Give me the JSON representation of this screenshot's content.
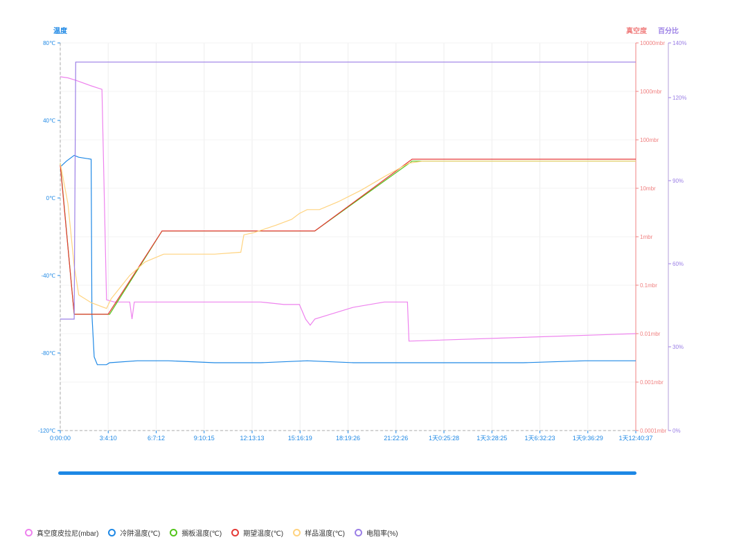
{
  "chart_data": {
    "type": "line",
    "axis_titles": {
      "left": "温度",
      "right_vacuum": "真空度",
      "right_percent": "百分比"
    },
    "x_ticks": [
      "0:00:00",
      "3:4:10",
      "6:7:12",
      "9:10:15",
      "12:13:13",
      "15:16:19",
      "18:19:26",
      "21:22:26",
      "1天0:25:28",
      "1天3:28:25",
      "1天6:32:23",
      "1天9:36:29",
      "1天12:40:37"
    ],
    "x_range_hours": [
      0,
      37.3
    ],
    "y_left": {
      "ticks": [
        "80℃",
        "40℃",
        "0℃",
        "-40℃",
        "-80℃",
        "-120℃"
      ],
      "range": [
        -120,
        80
      ]
    },
    "y_vacuum": {
      "ticks": [
        "10000mbr",
        "1000mbr",
        "100mbr",
        "10mbr",
        "1mbr",
        "0.1mbr",
        "0.01mbr",
        "0.001mbr",
        "0.0001mbr"
      ],
      "log_range": [
        -4,
        4
      ]
    },
    "y_percent": {
      "ticks": [
        "140%",
        "120%",
        "90%",
        "60%",
        "30%",
        "0%"
      ]
    },
    "grid": true,
    "legend_position": "bottom-left",
    "series": [
      {
        "name": "真空度皮拉尼(mbar)",
        "color": "#ee82ee",
        "axis": "vacuum",
        "points": [
          [
            0,
            2000
          ],
          [
            0.5,
            1900
          ],
          [
            1,
            1700
          ],
          [
            2,
            1300
          ],
          [
            2.7,
            1100
          ],
          [
            3.0,
            0.05
          ],
          [
            3.5,
            0.045
          ],
          [
            4.5,
            0.045
          ],
          [
            4.65,
            0.02
          ],
          [
            4.8,
            0.045
          ],
          [
            7,
            0.045
          ],
          [
            10,
            0.045
          ],
          [
            13,
            0.045
          ],
          [
            14.5,
            0.04
          ],
          [
            15.5,
            0.04
          ],
          [
            15.9,
            0.02
          ],
          [
            16.2,
            0.015
          ],
          [
            16.5,
            0.02
          ],
          [
            17.5,
            0.025
          ],
          [
            19,
            0.035
          ],
          [
            21,
            0.045
          ],
          [
            22.5,
            0.045
          ],
          [
            22.6,
            0.007
          ],
          [
            37.3,
            0.01
          ]
        ]
      },
      {
        "name": "冷阱温度(℃)",
        "color": "#1e88e5",
        "axis": "left",
        "points": [
          [
            0,
            16
          ],
          [
            0.4,
            19
          ],
          [
            0.9,
            22
          ],
          [
            1.2,
            21
          ],
          [
            2.0,
            20
          ],
          [
            2.05,
            -60
          ],
          [
            2.2,
            -82
          ],
          [
            2.4,
            -86
          ],
          [
            3.0,
            -86
          ],
          [
            3.2,
            -85
          ],
          [
            5,
            -84
          ],
          [
            7,
            -84
          ],
          [
            10,
            -85
          ],
          [
            13,
            -85
          ],
          [
            16,
            -84
          ],
          [
            19,
            -85
          ],
          [
            22,
            -85
          ],
          [
            26,
            -85
          ],
          [
            30,
            -85
          ],
          [
            34,
            -84
          ],
          [
            37.3,
            -84
          ]
        ]
      },
      {
        "name": "搁板温度(℃)",
        "color": "#52c41a",
        "axis": "left",
        "points": [
          [
            0,
            18
          ],
          [
            0.9,
            -60
          ],
          [
            1.5,
            -60
          ],
          [
            3.2,
            -60
          ],
          [
            6.6,
            -17
          ],
          [
            10,
            -17
          ],
          [
            16,
            -17
          ],
          [
            16.5,
            -17
          ],
          [
            22.8,
            19
          ],
          [
            26,
            19
          ],
          [
            30,
            19
          ],
          [
            34,
            19
          ],
          [
            37.3,
            19
          ]
        ]
      },
      {
        "name": "期望温度(℃)",
        "color": "#e53935",
        "axis": "left",
        "points": [
          [
            0,
            17
          ],
          [
            0.9,
            -60
          ],
          [
            1.5,
            -60
          ],
          [
            3.1,
            -60
          ],
          [
            6.6,
            -17
          ],
          [
            10,
            -17
          ],
          [
            16,
            -17
          ],
          [
            16.5,
            -17
          ],
          [
            22.8,
            20
          ],
          [
            26,
            20
          ],
          [
            30,
            20
          ],
          [
            34,
            20
          ],
          [
            37.3,
            20
          ]
        ]
      },
      {
        "name": "样品温度(℃)",
        "color": "#ffd37f",
        "axis": "left",
        "points": [
          [
            0,
            18
          ],
          [
            0.5,
            -3
          ],
          [
            0.9,
            -35
          ],
          [
            1.2,
            -50
          ],
          [
            2.0,
            -54
          ],
          [
            3.0,
            -57
          ],
          [
            3.3,
            -52
          ],
          [
            4.5,
            -40
          ],
          [
            5.5,
            -33
          ],
          [
            6.7,
            -29
          ],
          [
            8,
            -29
          ],
          [
            10,
            -29
          ],
          [
            11.7,
            -28
          ],
          [
            11.9,
            -19
          ],
          [
            12.5,
            -18
          ],
          [
            14,
            -14
          ],
          [
            15,
            -11
          ],
          [
            15.5,
            -8
          ],
          [
            16.0,
            -6
          ],
          [
            16.8,
            -6
          ],
          [
            18,
            -2
          ],
          [
            19.5,
            4
          ],
          [
            21,
            11
          ],
          [
            22.6,
            18
          ],
          [
            23.5,
            19
          ],
          [
            26,
            19
          ],
          [
            30,
            19
          ],
          [
            34,
            19
          ],
          [
            37.3,
            19
          ]
        ]
      },
      {
        "name": "电阻率(%)",
        "color": "#9b7fe6",
        "axis": "percent",
        "points": [
          [
            0,
            40
          ],
          [
            0.9,
            40
          ],
          [
            1.0,
            133
          ],
          [
            37.3,
            133
          ]
        ]
      }
    ]
  }
}
